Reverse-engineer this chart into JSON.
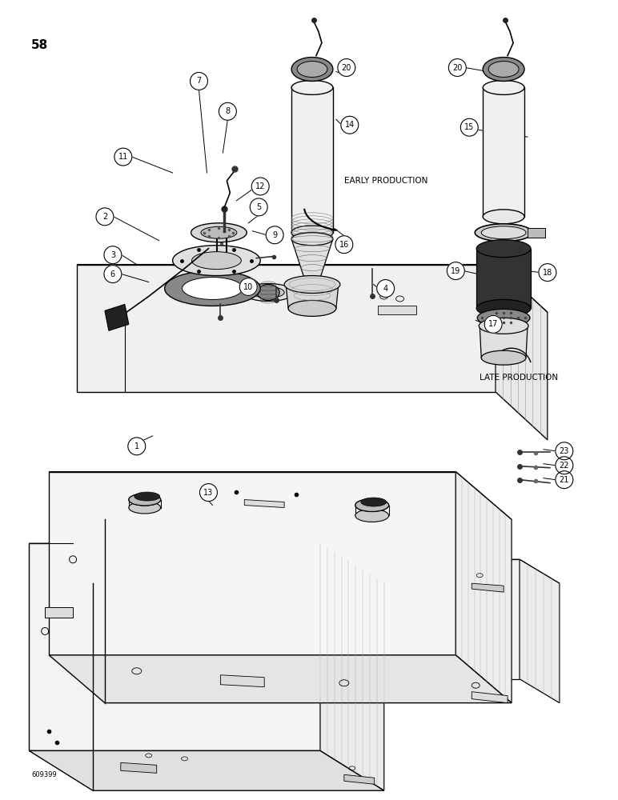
{
  "page_number": "58",
  "footer_code": "609399",
  "bg": "#ffffff",
  "lc": "#000000",
  "early_production": "EARLY PRODUCTION",
  "late_production": "LATE PRODUCTION",
  "figsize": [
    7.72,
    10.0
  ],
  "dpi": 100
}
